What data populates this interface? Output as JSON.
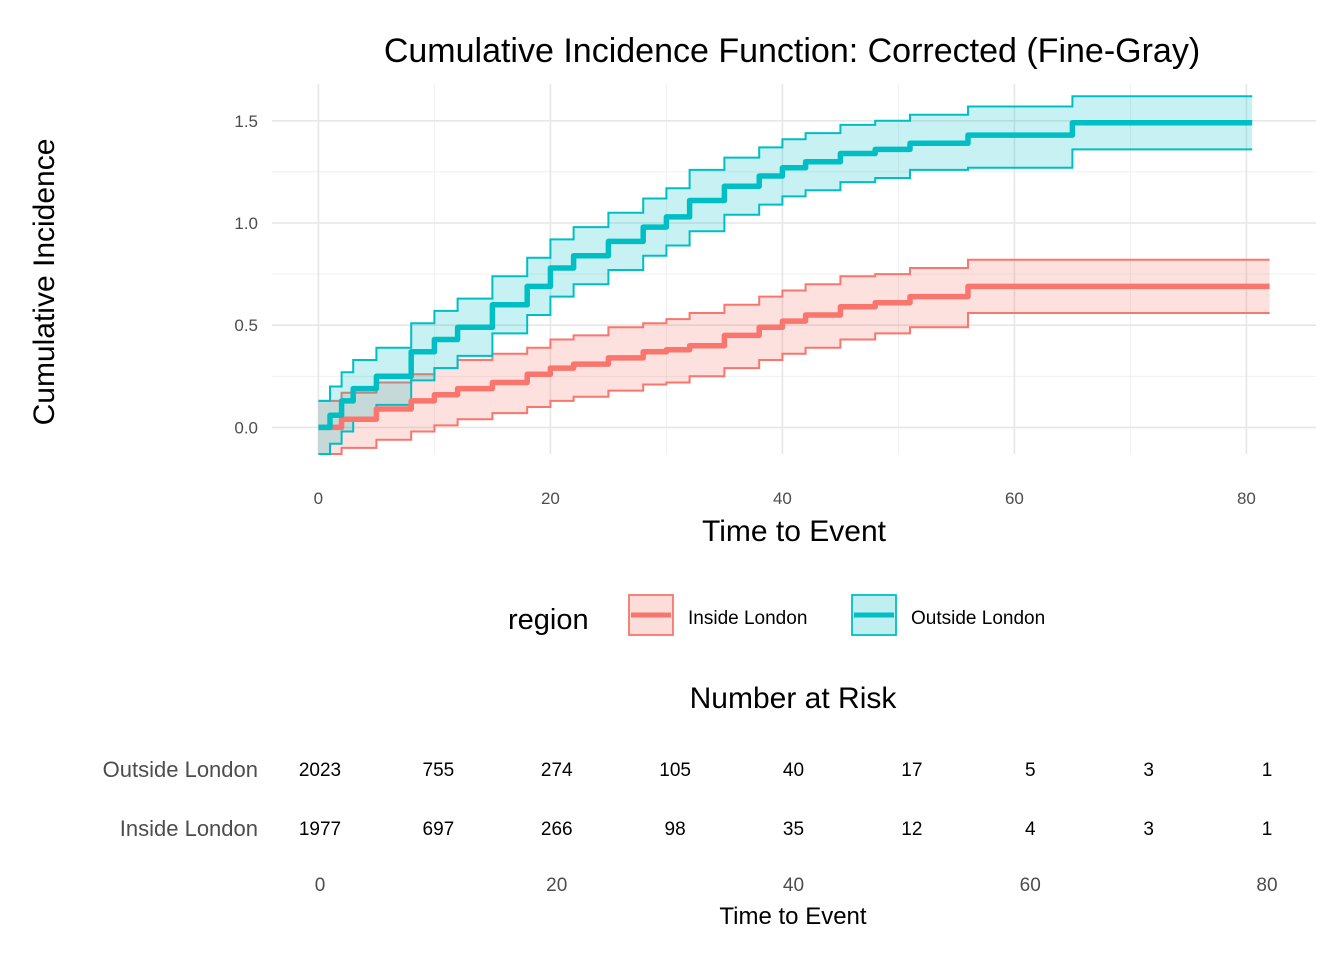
{
  "chart_data": [
    {
      "type": "line",
      "subtype": "step cumulative incidence with confidence bands",
      "title": "Cumulative Incidence Function: Corrected (Fine-Gray)",
      "xlabel": "Time to Event",
      "ylabel": "Cumulative Incidence",
      "xlim": [
        -4,
        86
      ],
      "ylim": [
        -0.13,
        1.68
      ],
      "x_ticks": [
        0,
        20,
        40,
        60,
        80
      ],
      "x_tick_labels": [
        "0",
        "20",
        "40",
        "60",
        "80"
      ],
      "y_ticks": [
        0.0,
        0.5,
        1.0,
        1.5
      ],
      "y_tick_labels": [
        "0.0",
        "0.5",
        "1.0",
        "1.5"
      ],
      "grid": true,
      "legend": {
        "title": "region",
        "placement": "bottom",
        "entries": [
          "Inside London",
          "Outside London"
        ]
      },
      "series": [
        {
          "name": "Inside London",
          "color": "#F8766D",
          "x": [
            0,
            2,
            5,
            8,
            10,
            12,
            15,
            18,
            20,
            22,
            25,
            28,
            30,
            32,
            35,
            38,
            40,
            42,
            45,
            48,
            51,
            56,
            58,
            65,
            82
          ],
          "y": [
            0.0,
            0.04,
            0.09,
            0.13,
            0.16,
            0.19,
            0.22,
            0.26,
            0.29,
            0.31,
            0.34,
            0.37,
            0.38,
            0.4,
            0.45,
            0.49,
            0.52,
            0.55,
            0.59,
            0.61,
            0.64,
            0.69,
            0.69,
            0.69,
            0.69
          ],
          "lower": [
            -0.13,
            -0.1,
            -0.06,
            -0.02,
            0.01,
            0.04,
            0.07,
            0.1,
            0.13,
            0.15,
            0.18,
            0.21,
            0.22,
            0.25,
            0.29,
            0.33,
            0.36,
            0.39,
            0.43,
            0.46,
            0.49,
            0.56,
            0.56,
            0.56,
            0.56
          ],
          "upper": [
            0.13,
            0.17,
            0.22,
            0.26,
            0.29,
            0.33,
            0.36,
            0.39,
            0.43,
            0.45,
            0.49,
            0.51,
            0.53,
            0.56,
            0.6,
            0.64,
            0.67,
            0.7,
            0.74,
            0.75,
            0.78,
            0.82,
            0.82,
            0.82,
            0.82
          ]
        },
        {
          "name": "Outside London",
          "color": "#00BFC4",
          "x": [
            0,
            1,
            2,
            3,
            5,
            8,
            10,
            12,
            15,
            18,
            20,
            22,
            25,
            28,
            30,
            32,
            35,
            38,
            40,
            42,
            45,
            48,
            51,
            56,
            60,
            65,
            80.5
          ],
          "y": [
            0.0,
            0.06,
            0.13,
            0.19,
            0.25,
            0.37,
            0.43,
            0.49,
            0.6,
            0.69,
            0.78,
            0.84,
            0.91,
            0.98,
            1.03,
            1.11,
            1.18,
            1.23,
            1.27,
            1.3,
            1.34,
            1.36,
            1.39,
            1.43,
            1.43,
            1.49,
            1.49
          ],
          "lower": [
            -0.13,
            -0.08,
            -0.02,
            0.04,
            0.11,
            0.23,
            0.29,
            0.35,
            0.46,
            0.55,
            0.64,
            0.7,
            0.77,
            0.84,
            0.89,
            0.96,
            1.04,
            1.09,
            1.13,
            1.16,
            1.2,
            1.22,
            1.26,
            1.27,
            1.27,
            1.36,
            1.36
          ],
          "upper": [
            0.13,
            0.2,
            0.27,
            0.33,
            0.39,
            0.51,
            0.57,
            0.63,
            0.74,
            0.83,
            0.92,
            0.98,
            1.05,
            1.12,
            1.17,
            1.26,
            1.32,
            1.37,
            1.41,
            1.44,
            1.48,
            1.5,
            1.53,
            1.57,
            1.57,
            1.62,
            1.62
          ]
        }
      ]
    },
    {
      "type": "table",
      "title": "Number at Risk",
      "xlabel": "Time to Event",
      "x": [
        0,
        10,
        20,
        30,
        40,
        50,
        60,
        70,
        80
      ],
      "x_ticks": [
        0,
        20,
        40,
        60,
        80
      ],
      "x_tick_labels": [
        "0",
        "20",
        "40",
        "60",
        "80"
      ],
      "rows": [
        {
          "name": "Outside London",
          "values": [
            2023,
            755,
            274,
            105,
            40,
            17,
            5,
            3,
            1
          ]
        },
        {
          "name": "Inside London",
          "values": [
            1977,
            697,
            266,
            98,
            35,
            12,
            4,
            3,
            1
          ]
        }
      ]
    }
  ]
}
